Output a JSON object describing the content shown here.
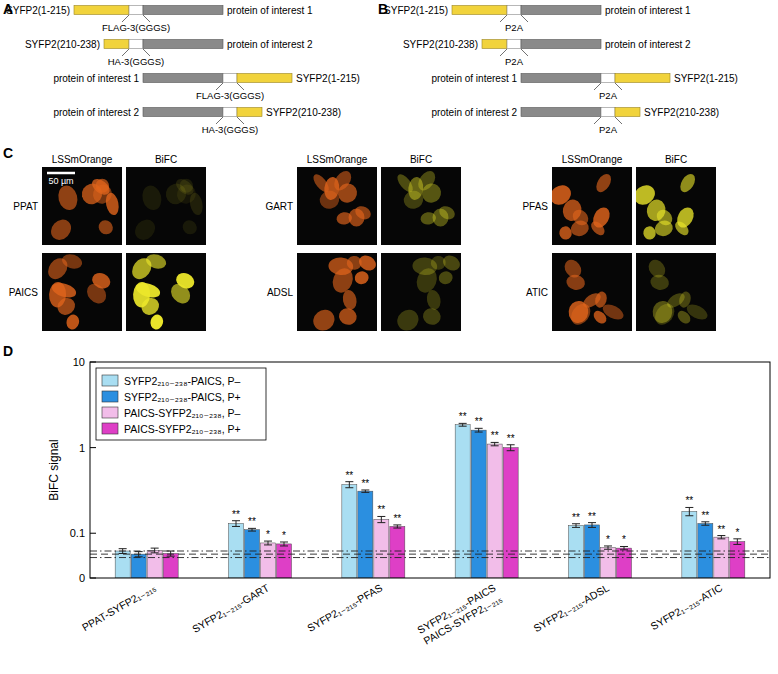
{
  "panel_labels": [
    "A",
    "B",
    "C",
    "D"
  ],
  "diagram_a": {
    "rows": [
      {
        "left": "SYFP2(1-215)",
        "linker": "FLAG-3(GGGS)",
        "right": "protein of interest 1"
      },
      {
        "left": "SYFP2(210-238)",
        "linker": "HA-3(GGGS)",
        "right": "protein of interest 2"
      },
      {
        "left": "protein of interest 1",
        "linker": "FLAG-3(GGGS)",
        "right": "SYFP2(1-215)"
      },
      {
        "left": "protein of interest 2",
        "linker": "HA-3(GGGS)",
        "right": "SYFP2(210-238)"
      }
    ]
  },
  "diagram_b": {
    "rows": [
      {
        "left": "SYFP2(1-215)",
        "linker": "P2A",
        "right": "protein of interest 1"
      },
      {
        "left": "SYFP2(210-238)",
        "linker": "P2A",
        "right": "protein of interest 2"
      },
      {
        "left": "protein of interest 1",
        "linker": "P2A",
        "right": "SYFP2(1-215)"
      },
      {
        "left": "protein of interest 2",
        "linker": "P2A",
        "right": "SYFP2(210-238)"
      }
    ]
  },
  "micrographs": {
    "scale_bar": "50 µm",
    "channels": [
      "LSSmOrange",
      "BiFC"
    ],
    "samples": [
      "PPAT",
      "GART",
      "PFAS",
      "PAICS",
      "ADSL",
      "ATIC"
    ]
  },
  "chart_data": {
    "type": "bar",
    "y_label": "BiFC signal",
    "log": "y",
    "grid": false,
    "legend": "upper left",
    "ylim": [
      0.03,
      10
    ],
    "yticks": [
      {
        "value": 0.03,
        "label": "0"
      },
      0.1,
      1,
      10
    ],
    "categories": [
      "PPAT-SYFP2₁₋₂₁₅",
      "SYFP2₁₋₂₁₅-GART",
      "SYFP2₁₋₂₁₅-PFAS",
      "SYFP2₁₋₂₁₅-PAICS\nPAICS-SYFP2₁₋₂₁₅",
      "SYFP2₁₋₂₁₅-ADSL",
      "SYFP2₁₋₂₁₅-ATIC"
    ],
    "series": [
      {
        "name": "SYFP2₂₁₀₋₂₃₈-PAICS, P–",
        "color": "#a9def2",
        "values": [
          0.062,
          0.13,
          0.37,
          1.85,
          0.123,
          0.18
        ],
        "errors": [
          0.004,
          0.01,
          0.03,
          0.07,
          0.006,
          0.02
        ],
        "significance": [
          null,
          "**",
          "**",
          "**",
          "**",
          "**"
        ]
      },
      {
        "name": "SYFP2₂₁₀₋₂₃₈-PAICS, P+",
        "color": "#2b8fe0",
        "values": [
          0.057,
          0.11,
          0.31,
          1.6,
          0.125,
          0.13
        ],
        "errors": [
          0.004,
          0.004,
          0.01,
          0.08,
          0.008,
          0.006
        ],
        "significance": [
          null,
          "**",
          "**",
          "**",
          "**",
          "**"
        ]
      },
      {
        "name": "PAICS-SYFP2₂₁₀₋₂₃₈, P–",
        "color": "#f2bde9",
        "values": [
          0.063,
          0.077,
          0.145,
          1.1,
          0.068,
          0.09
        ],
        "errors": [
          0.004,
          0.004,
          0.012,
          0.05,
          0.003,
          0.004
        ],
        "significance": [
          null,
          "*",
          "**",
          "**",
          "*",
          "**"
        ]
      },
      {
        "name": "PAICS-SYFP2₂₁₀₋₂₃₈, P+",
        "color": "#de3fc6",
        "values": [
          0.058,
          0.075,
          0.12,
          1.0,
          0.067,
          0.08
        ],
        "errors": [
          0.004,
          0.004,
          0.005,
          0.08,
          0.003,
          0.006
        ],
        "significance": [
          null,
          "*",
          "**",
          "**",
          "*",
          "*"
        ]
      }
    ],
    "reference_lines": [
      {
        "value": 0.057,
        "line_style": "dashed"
      },
      {
        "value": 0.062,
        "line_style": "dashdot"
      },
      {
        "value": 0.052,
        "line_style": "dashdot"
      }
    ]
  }
}
